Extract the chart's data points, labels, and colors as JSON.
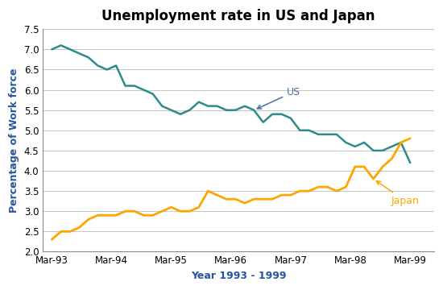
{
  "title": "Unemployment rate in US and Japan",
  "xlabel": "Year 1993 - 1999",
  "ylabel": "Percentage of Work force",
  "ylim": [
    2.0,
    7.5
  ],
  "yticks": [
    2.0,
    2.5,
    3.0,
    3.5,
    4.0,
    4.5,
    5.0,
    5.5,
    6.0,
    6.5,
    7.0,
    7.5
  ],
  "xtick_labels": [
    "Mar-93",
    "Mar-94",
    "Mar-95",
    "Mar-96",
    "Mar-97",
    "Mar-98",
    "Mar-99"
  ],
  "us_color": "#2E8B8B",
  "japan_color": "#FFA500",
  "us_data": [
    7.0,
    7.1,
    7.0,
    6.9,
    6.8,
    6.6,
    6.5,
    6.6,
    6.1,
    6.1,
    6.0,
    5.9,
    5.6,
    5.5,
    5.4,
    5.5,
    5.7,
    5.6,
    5.6,
    5.5,
    5.5,
    5.6,
    5.5,
    5.2,
    5.4,
    5.4,
    5.3,
    5.0,
    5.0,
    4.9,
    4.9,
    4.9,
    4.7,
    4.6,
    4.7,
    4.5,
    4.5,
    4.6,
    4.7,
    4.2
  ],
  "japan_data": [
    2.3,
    2.5,
    2.5,
    2.6,
    2.8,
    2.9,
    2.9,
    2.9,
    3.0,
    3.0,
    2.9,
    2.9,
    3.0,
    3.1,
    3.0,
    3.0,
    3.1,
    3.5,
    3.4,
    3.3,
    3.3,
    3.2,
    3.3,
    3.3,
    3.3,
    3.4,
    3.4,
    3.5,
    3.5,
    3.6,
    3.6,
    3.5,
    3.6,
    4.1,
    4.1,
    3.8,
    4.1,
    4.3,
    4.7,
    4.8
  ],
  "title_fontsize": 12,
  "label_fontsize": 9,
  "tick_fontsize": 8.5,
  "annotation_us_color": "#4A6EA8",
  "annotation_japan_color": "#FFA500",
  "axis_label_color": "#2855A0",
  "background_color": "#FFFFFF",
  "grid_color": "#BBBBBB"
}
